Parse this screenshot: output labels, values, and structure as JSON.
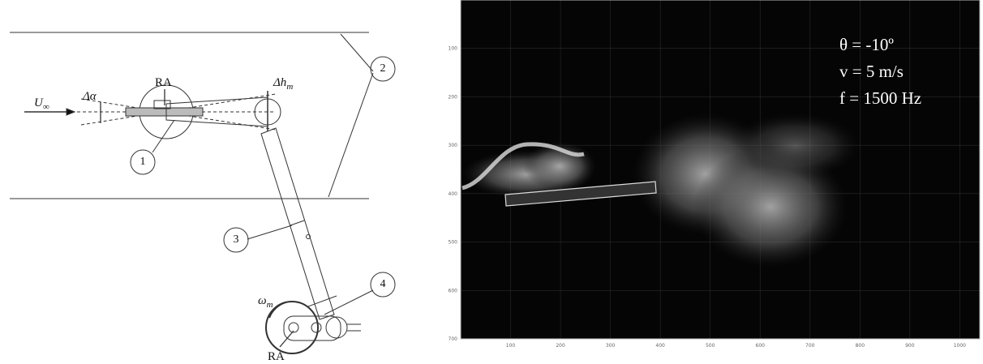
{
  "schematic": {
    "ra_top": "RA",
    "ra_bottom": "RA",
    "delta_alpha": "Δα",
    "delta_h": {
      "base": "Δh",
      "sub": "m"
    },
    "u_inf": {
      "base": "U",
      "sub": "∞"
    },
    "omega": {
      "base": "ω",
      "sub": "m"
    },
    "callouts": [
      "1",
      "2",
      "3",
      "4"
    ]
  },
  "flow_image": {
    "xlim": [
      0,
      1040
    ],
    "ylim": [
      0,
      700
    ],
    "xticks": [
      100,
      200,
      300,
      400,
      500,
      600,
      700,
      800,
      900,
      1000
    ],
    "yticks": [
      100,
      200,
      300,
      400,
      500,
      600,
      700
    ],
    "annotations": [
      "θ = -10º",
      "v = 5 m/s",
      "f = 1500 Hz"
    ]
  }
}
